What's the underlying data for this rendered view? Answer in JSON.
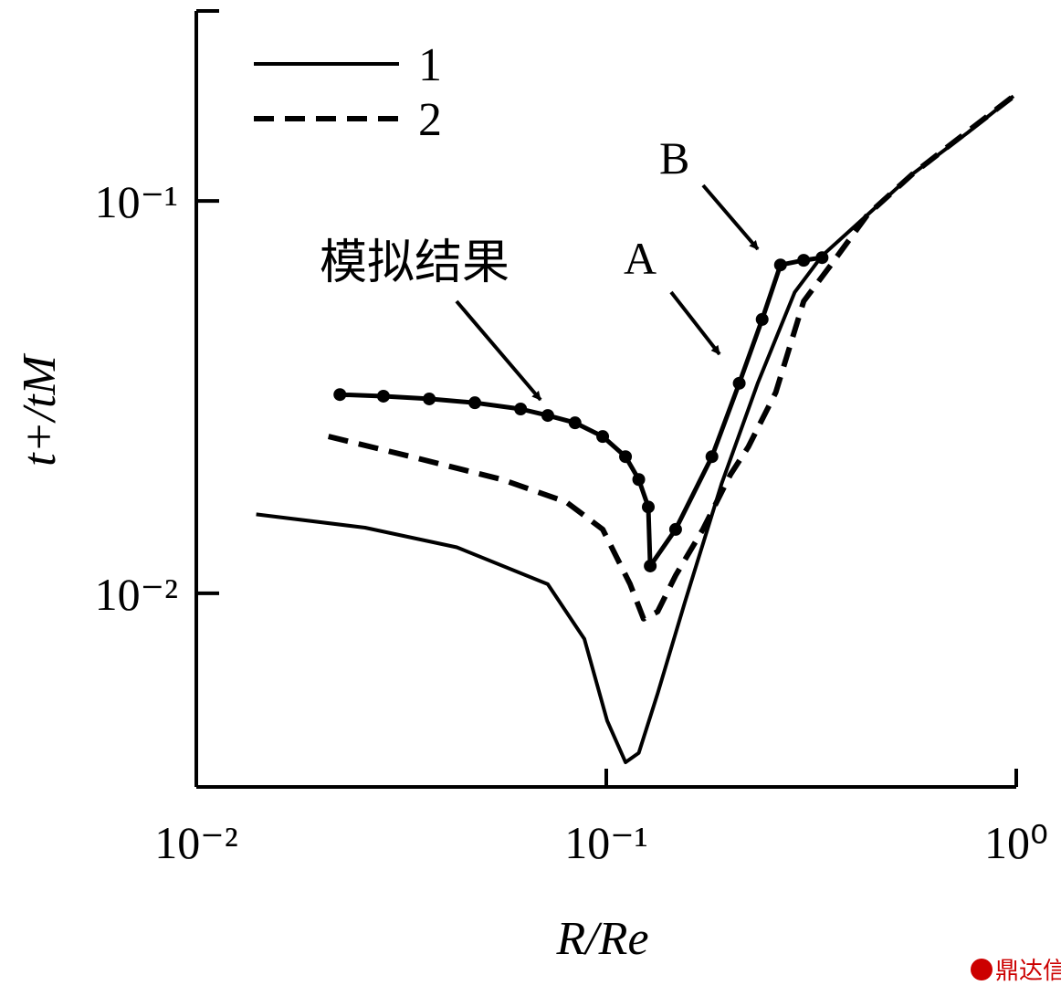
{
  "chart_data": {
    "type": "line",
    "x_label": "R/Re",
    "y_label": "t+/tM",
    "xlim": [
      0.01,
      1
    ],
    "ylim": [
      0.00321,
      0.305
    ],
    "xticks": [
      {
        "value": 0.01,
        "label": "10⁻²"
      },
      {
        "value": 0.1,
        "label": "10⁻¹"
      },
      {
        "value": 1,
        "label": "10⁰"
      }
    ],
    "yticks": [
      {
        "value": 0.01,
        "label": "10⁻²"
      },
      {
        "value": 0.1,
        "label": "10⁻¹"
      }
    ],
    "x_log": true,
    "y_log": true,
    "grid": false,
    "legend": "upper left",
    "series": [
      {
        "name": "1",
        "color": "#000000",
        "style": "solid",
        "x": [
          0.014,
          0.0258,
          0.0432,
          0.072,
          0.0884,
          0.1005,
          0.1114,
          0.12,
          0.1334,
          0.1554,
          0.191,
          0.234,
          0.288,
          0.336,
          0.434,
          0.56,
          0.762,
          0.984
        ],
        "values": [
          0.0159,
          0.0147,
          0.0131,
          0.01055,
          0.00765,
          0.00473,
          0.00371,
          0.00392,
          0.00555,
          0.00948,
          0.019,
          0.0343,
          0.0585,
          0.0725,
          0.0923,
          0.1174,
          0.1494,
          0.185
        ]
      },
      {
        "name": "2",
        "color": "#000000",
        "style": "dashed",
        "x": [
          0.021,
          0.0334,
          0.0557,
          0.0798,
          0.098,
          0.1143,
          0.1233,
          0.1334,
          0.1476,
          0.172,
          0.201,
          0.222,
          0.259,
          0.303,
          0.353,
          0.434,
          0.56,
          0.984
        ],
        "values": [
          0.0251,
          0.0223,
          0.0195,
          0.0171,
          0.01455,
          0.01055,
          0.00861,
          0.00898,
          0.0111,
          0.01455,
          0.0201,
          0.0236,
          0.0325,
          0.0555,
          0.0687,
          0.0923,
          0.1174,
          0.185
        ]
      },
      {
        "name": "模拟结果",
        "color": "#000000",
        "style": "dotted-marker",
        "x": [
          0.0224,
          0.0286,
          0.037,
          0.0478,
          0.0618,
          0.072,
          0.0839,
          0.098,
          0.1114,
          0.12,
          0.1266,
          0.128,
          0.1476,
          0.181,
          0.211,
          0.24,
          0.266,
          0.303,
          0.336
        ],
        "values": [
          0.0321,
          0.0318,
          0.0313,
          0.0306,
          0.0295,
          0.0284,
          0.0272,
          0.0251,
          0.0223,
          0.0195,
          0.0166,
          0.01174,
          0.01455,
          0.0223,
          0.0343,
          0.0499,
          0.0687,
          0.0706,
          0.0717
        ]
      }
    ],
    "annotations": [
      "A",
      "B"
    ],
    "watermark": "鼎达信"
  }
}
